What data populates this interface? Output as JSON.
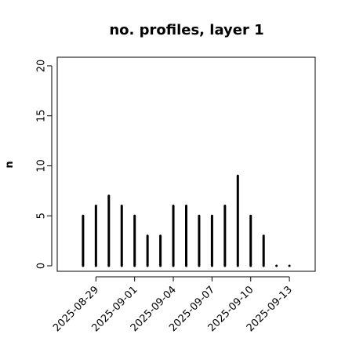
{
  "chart_data": {
    "type": "bar",
    "title": "no. profiles, layer 1",
    "y_label": "n",
    "x": [
      "2025-08-28",
      "2025-08-29",
      "2025-08-30",
      "2025-08-31",
      "2025-09-01",
      "2025-09-02",
      "2025-09-03",
      "2025-09-04",
      "2025-09-05",
      "2025-09-06",
      "2025-09-07",
      "2025-09-08",
      "2025-09-09",
      "2025-09-10",
      "2025-09-11",
      "2025-09-12",
      "2025-09-13"
    ],
    "values": [
      5,
      6,
      7,
      6,
      5,
      3,
      3,
      6,
      6,
      5,
      5,
      6,
      9,
      5,
      3,
      0,
      0
    ],
    "color": "#000000",
    "xlim": [
      "2025-08-26",
      "2025-09-15"
    ],
    "xticks": [
      "2025-08-29",
      "2025-09-01",
      "2025-09-04",
      "2025-09-07",
      "2025-09-10",
      "2025-09-13"
    ],
    "highlight_xtick": "2025-09-04",
    "highlight_color": "#228b22",
    "ylim": [
      -0.55,
      20.86
    ],
    "yticks": [
      0,
      5,
      10,
      15,
      20
    ]
  }
}
